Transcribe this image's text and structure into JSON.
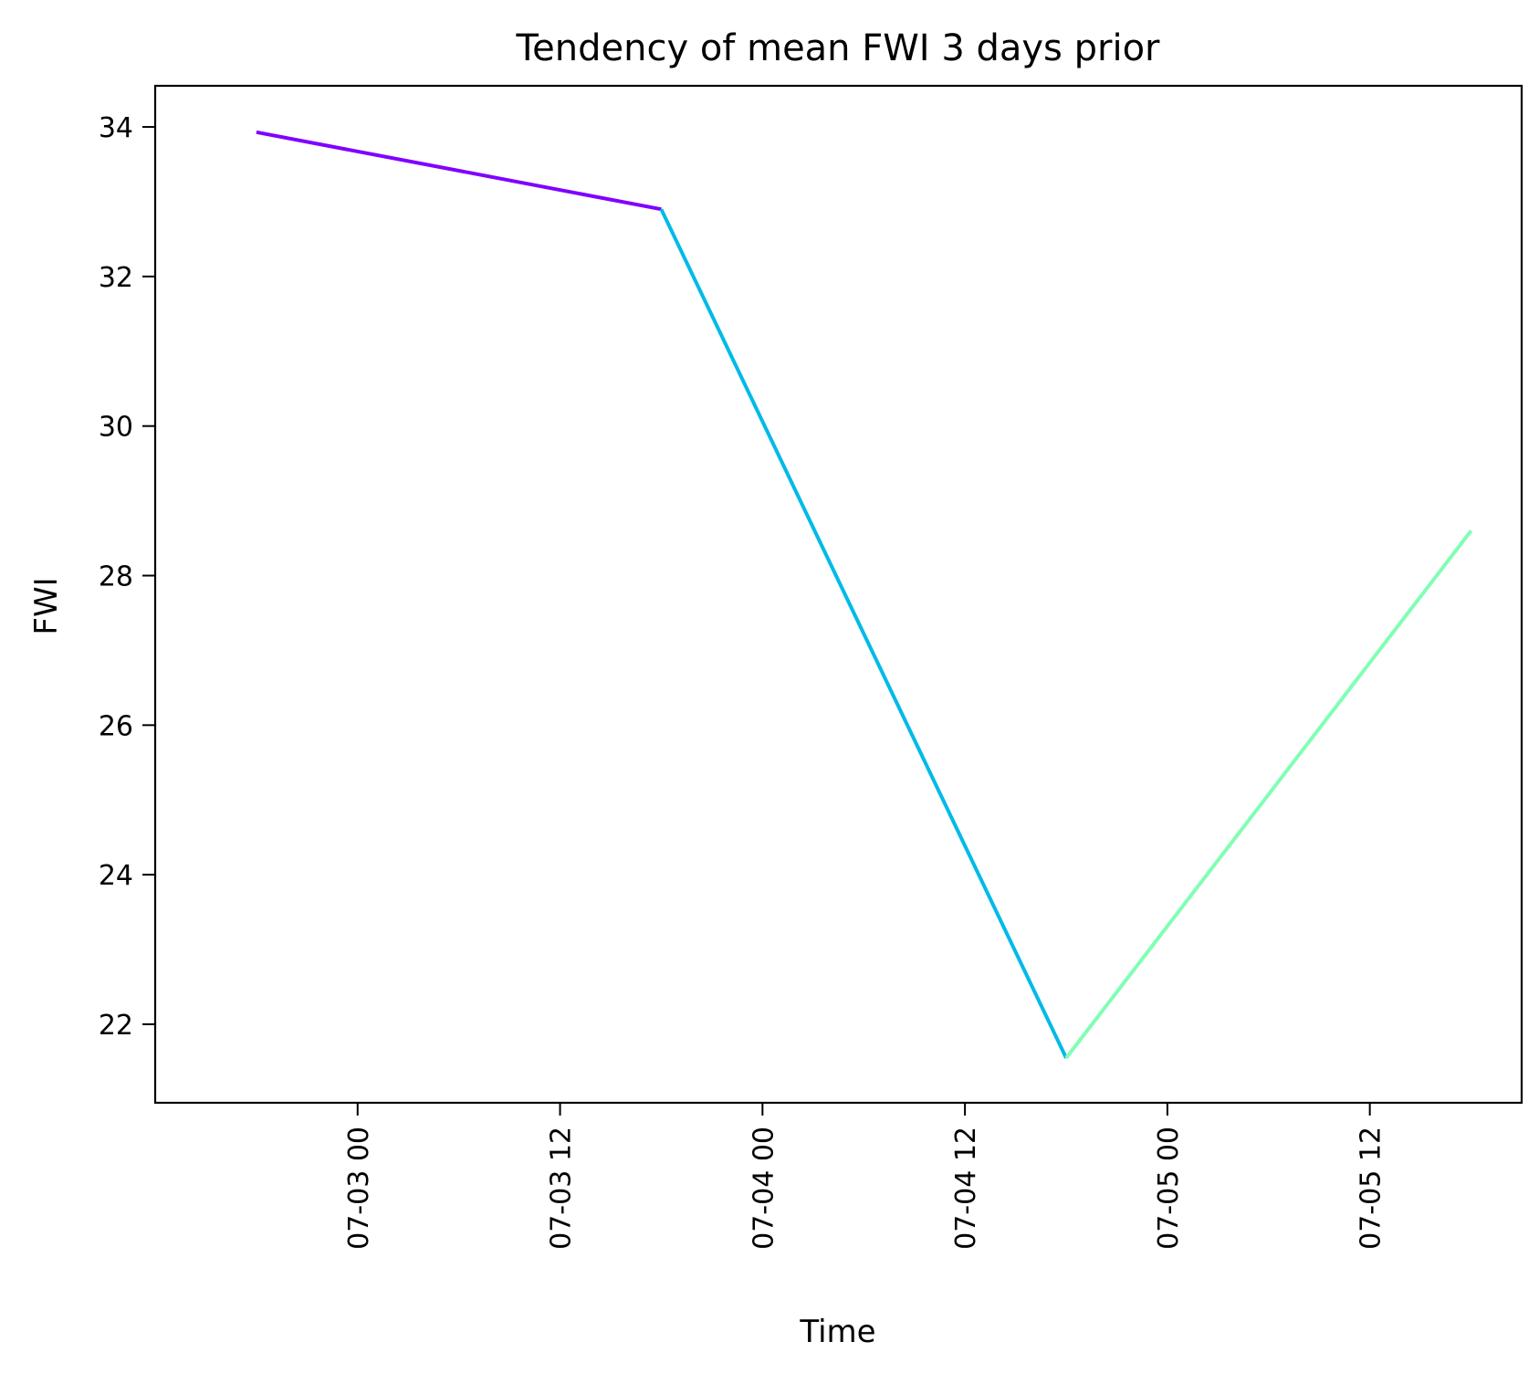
{
  "chart_data": {
    "type": "line",
    "title": "Tendency of mean FWI 3 days prior",
    "xlabel": "Time",
    "ylabel": "FWI",
    "x_axis_type": "datetime",
    "xlim": [
      "2000-07-02 12:00",
      "2000-07-05 21:00"
    ],
    "ylim": [
      20.95,
      34.55
    ],
    "grid": false,
    "x_ticks": [
      {
        "value": "2000-07-03 00:00",
        "label": "07-03 00"
      },
      {
        "value": "2000-07-03 12:00",
        "label": "07-03 12"
      },
      {
        "value": "2000-07-04 00:00",
        "label": "07-04 00"
      },
      {
        "value": "2000-07-04 12:00",
        "label": "07-04 12"
      },
      {
        "value": "2000-07-05 00:00",
        "label": "07-05 00"
      },
      {
        "value": "2000-07-05 12:00",
        "label": "07-05 12"
      }
    ],
    "y_ticks": [
      22,
      24,
      26,
      28,
      30,
      32,
      34
    ],
    "series": [
      {
        "color": "#8000ff",
        "points": [
          [
            "2000-07-02 18:00",
            33.93
          ],
          [
            "2000-07-03 18:00",
            32.9
          ]
        ]
      },
      {
        "color": "#00bae8",
        "points": [
          [
            "2000-07-03 18:00",
            32.9
          ],
          [
            "2000-07-04 18:00",
            21.55
          ]
        ]
      },
      {
        "color": "#80ffb4",
        "points": [
          [
            "2000-07-04 18:00",
            21.55
          ],
          [
            "2000-07-05 18:00",
            28.6
          ]
        ]
      }
    ]
  }
}
